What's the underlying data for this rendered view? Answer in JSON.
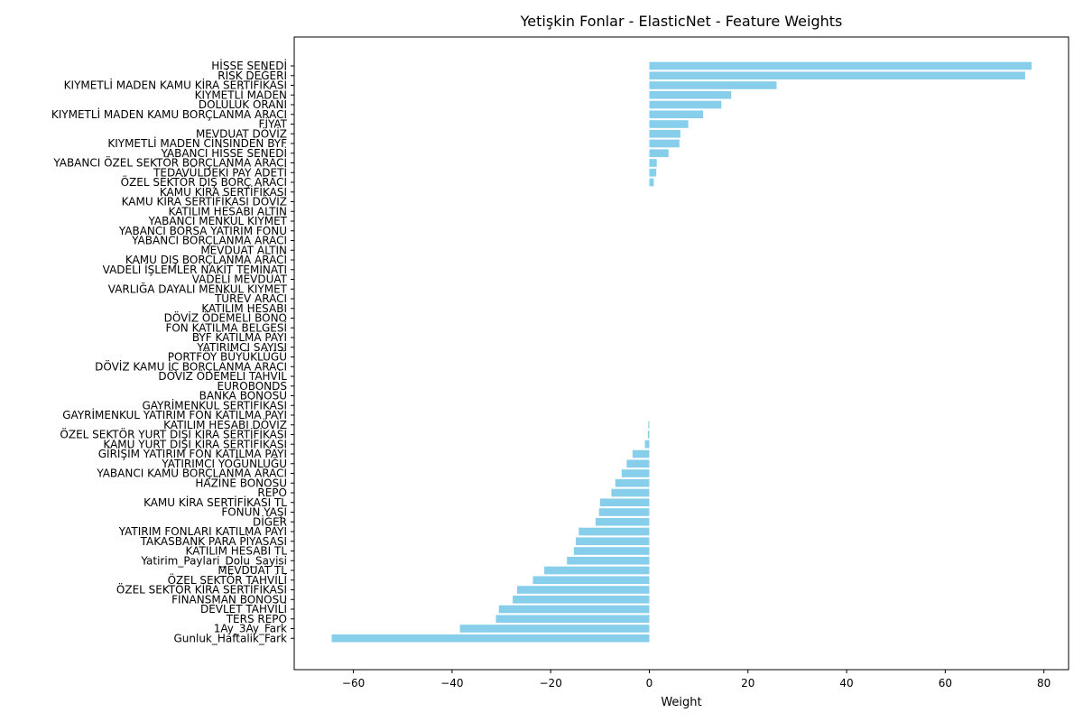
{
  "chart_data": {
    "type": "bar",
    "orientation": "horizontal",
    "title": "Yetişkin Fonlar - ElasticNet - Feature Weights",
    "xlabel": "Weight",
    "ylabel": "",
    "xlim": [
      -72,
      85
    ],
    "xticks": [
      -60,
      -40,
      -20,
      0,
      20,
      40,
      60,
      80
    ],
    "xtick_labels": [
      "−60",
      "−40",
      "−20",
      "0",
      "20",
      "40",
      "60",
      "80"
    ],
    "bar_color": "#87CEEB",
    "grid": false,
    "categories": [
      "HİSSE SENEDİ",
      "RİSK DEĞERİ",
      "KIYMETLİ MADEN KAMU KİRA SERTİFİKASI",
      "KIYMETLİ MADEN",
      "DOLULUK ORANI",
      "KIYMETLİ MADEN KAMU BORÇLANMA ARACI",
      "FİYAT",
      "MEVDUAT DÖVİZ",
      "KIYMETLİ MADEN CİNSİNDEN BYF",
      "YABANCI HİSSE SENEDİ",
      "YABANCI ÖZEL SEKTÖR BORÇLANMA ARACI",
      "TEDAVÜLDEKİ PAY ADETİ",
      "ÖZEL SEKTÖR DIŞ BORÇ ARACI",
      "KAMU KİRA SERTİFİKASI",
      "KAMU KİRA SERTİFİKASI DÖVİZ",
      "KATILIM HESABI ALTIN",
      "YABANCI MENKUL KIYMET",
      "YABANCI BORSA YATIRIM FONU",
      "YABANCI BORÇLANMA ARACI",
      "MEVDUAT ALTIN",
      "KAMU DIŞ BORÇLANMA ARACI",
      "VADELİ İŞLEMLER NAKİT TEMİNATI",
      "VADELİ MEVDUAT",
      "VARLIĞA DAYALI MENKUL KIYMET",
      "TÜREV ARACI",
      "KATILIM HESABI",
      "DÖVİZ ÖDEMELİ BONO",
      "FON KATILMA BELGESİ",
      "BYF KATILMA PAYI",
      "YATIRIMCI SAYISI",
      "PORTFÖY BÜYÜKLÜĞÜ",
      "DÖVİZ KAMU İÇ BORÇLANMA ARACI",
      "DÖVİZ ÖDEMELİ TAHVİL",
      "EUROBONDS",
      "BANKA BONOSU",
      "GAYRİMENKUL SERTİFİKASI",
      "GAYRİMENKUL YATIRIM FON KATILMA PAYI",
      "KATILIM HESABI DÖVİZ",
      "ÖZEL SEKTÖR YURT DIŞI KİRA SERTİFİKASI",
      "KAMU YURT DIŞI KİRA SERTİFİKASI",
      "GİRİŞİM YATIRIM FON KATILMA PAYI",
      "YATIRIMCI YOĞUNLUĞU",
      "YABANCI KAMU BORÇLANMA ARACI",
      "HAZİNE BONOSU",
      "REPO",
      "KAMU KİRA SERTİFİKASI TL",
      "FONUN YAŞI",
      "DİĞER",
      "YATIRIM FONLARI KATILMA PAYI",
      "TAKASBANK PARA PİYASASI",
      "KATILIM HESABI TL",
      "Yatirim_Paylari_Dolu_Sayisi",
      "MEVDUAT TL",
      "ÖZEL SEKTÖR TAHVİLİ",
      "ÖZEL SEKTÖR KİRA SERTİFİKASI",
      "FİNANSMAN BONOSU",
      "DEVLET TAHVİLİ",
      "TERS REPO",
      "1Ay_3Ay_Fark",
      "Gunluk_Haftalik_Fark"
    ],
    "values": [
      77.5,
      76.2,
      25.8,
      16.6,
      14.6,
      10.9,
      7.9,
      6.3,
      6.1,
      3.9,
      1.5,
      1.4,
      0.9,
      0.0,
      0.0,
      0.0,
      0.0,
      0.0,
      0.0,
      0.0,
      0.0,
      0.0,
      0.0,
      0.0,
      0.0,
      0.0,
      0.0,
      0.0,
      0.0,
      0.0,
      0.0,
      0.0,
      0.0,
      0.0,
      0.0,
      0.0,
      0.0,
      -0.2,
      -0.3,
      -0.9,
      -3.4,
      -4.6,
      -5.6,
      -6.9,
      -7.7,
      -10.0,
      -10.2,
      -10.9,
      -14.3,
      -14.9,
      -15.3,
      -16.7,
      -21.3,
      -23.6,
      -26.8,
      -27.7,
      -30.5,
      -31.1,
      -38.4,
      -64.4
    ]
  }
}
